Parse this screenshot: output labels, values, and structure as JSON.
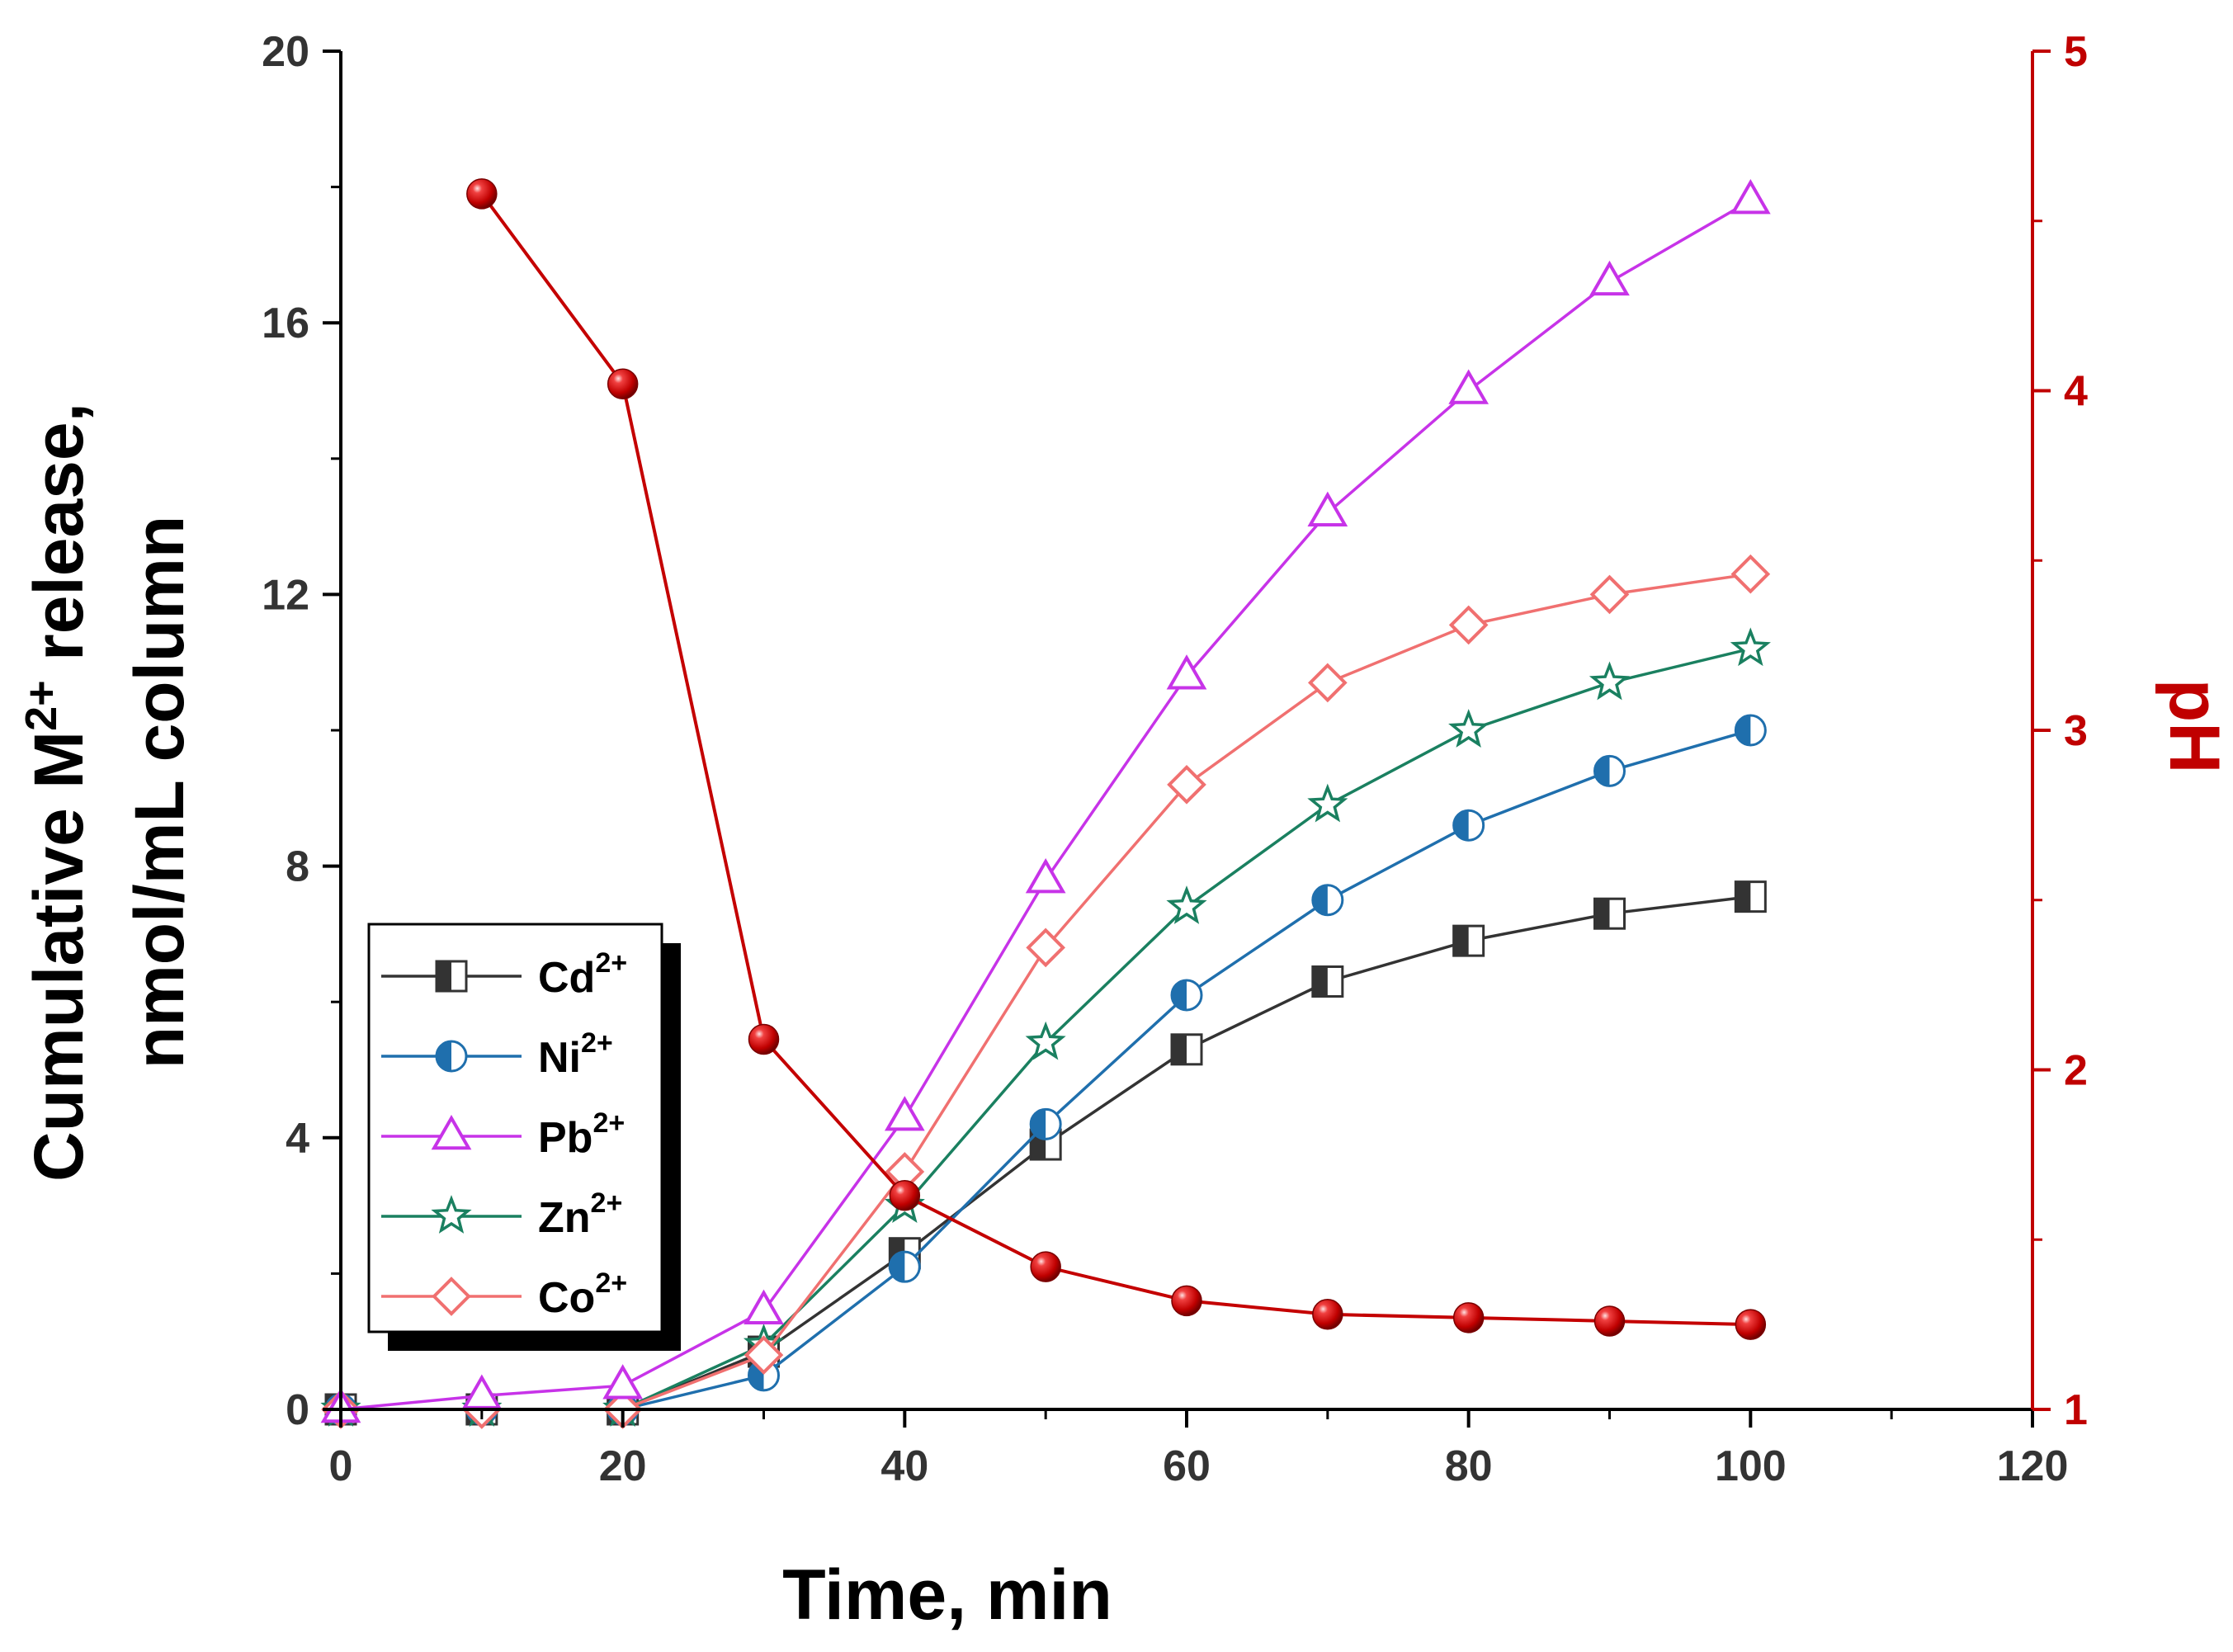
{
  "chart_data": {
    "type": "line",
    "xlabel": "Time, min",
    "ylabel_line1": "Cumulative M",
    "ylabel_sup": "2+",
    "ylabel_line1_end": " release,",
    "ylabel_line2": "nmol/mL column",
    "y2label": "pH",
    "xlim": [
      0,
      120
    ],
    "ylim": [
      0,
      20
    ],
    "y2lim": [
      1,
      5
    ],
    "xticks": [
      "0",
      "20",
      "40",
      "60",
      "80",
      "100",
      "120"
    ],
    "yticks": [
      "0",
      "4",
      "8",
      "12",
      "16",
      "20"
    ],
    "y2ticks": [
      "1",
      "2",
      "3",
      "4",
      "5"
    ],
    "x": [
      0,
      10,
      20,
      30,
      40,
      50,
      60,
      70,
      80,
      90,
      100
    ],
    "series": [
      {
        "name": "Cd",
        "sup": "2+",
        "color": "#333333",
        "marker": "half-square",
        "values": [
          0,
          0,
          0,
          0.85,
          2.3,
          3.9,
          5.3,
          6.3,
          6.9,
          7.3,
          7.55
        ]
      },
      {
        "name": "Ni",
        "sup": "2+",
        "color": "#1f6fad",
        "marker": "half-circle",
        "values": [
          0,
          0,
          0,
          0.5,
          2.1,
          4.2,
          6.1,
          7.5,
          8.6,
          9.4,
          10.0
        ]
      },
      {
        "name": "Pb",
        "sup": "2+",
        "color": "#c733e8",
        "marker": "triangle",
        "values": [
          0,
          0.2,
          0.35,
          1.45,
          4.3,
          7.8,
          10.8,
          13.2,
          15.0,
          16.6,
          17.8
        ]
      },
      {
        "name": "Zn",
        "sup": "2+",
        "color": "#1a8060",
        "marker": "star",
        "values": [
          0,
          0,
          0,
          0.95,
          3.0,
          5.4,
          7.4,
          8.9,
          10.0,
          10.7,
          11.2
        ]
      },
      {
        "name": "Co",
        "sup": "2+",
        "color": "#f07070",
        "marker": "diamond",
        "values": [
          0,
          0,
          0,
          0.8,
          3.5,
          6.8,
          9.2,
          10.7,
          11.55,
          12.0,
          12.3
        ]
      }
    ],
    "ph_series": {
      "name": "pH",
      "color": "#c40000",
      "x": [
        10,
        20,
        30,
        40,
        50,
        60,
        70,
        80,
        90,
        100
      ],
      "values": [
        4.58,
        4.02,
        2.09,
        1.63,
        1.42,
        1.32,
        1.28,
        1.27,
        1.26,
        1.25
      ]
    },
    "legend_position": "bottom-left",
    "grid": false
  }
}
